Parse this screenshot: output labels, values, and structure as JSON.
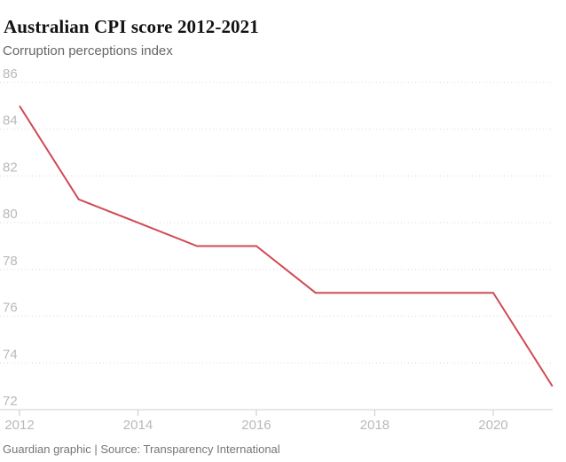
{
  "header": {
    "title": "Australian CPI score 2012-2021",
    "subtitle": "Corruption perceptions index"
  },
  "footer": {
    "credit": "Guardian graphic | Source: Transparency International"
  },
  "colors": {
    "line": "#d04a55",
    "gridline": "#d8d8d8",
    "axis_line": "#d2d2d2",
    "tick_mark": "#c9c9c9",
    "tick_label": "#b9b9b9",
    "title": "#121212",
    "subtitle": "#676767",
    "footer": "#757575"
  },
  "chart_data": {
    "type": "line",
    "title": "Australian CPI score 2012-2021",
    "subtitle": "Corruption perceptions index",
    "x": [
      2012,
      2013,
      2014,
      2015,
      2016,
      2017,
      2018,
      2019,
      2020,
      2021
    ],
    "series": [
      {
        "name": "Australia Corruption Perceptions Index score",
        "values": [
          85,
          81,
          80,
          79,
          79,
          77,
          77,
          77,
          77,
          73
        ]
      }
    ],
    "xlim": [
      2012,
      2021
    ],
    "ylim": [
      72,
      86
    ],
    "yticks": [
      72,
      74,
      76,
      78,
      80,
      82,
      84,
      86
    ],
    "xticks": [
      2012,
      2014,
      2016,
      2018,
      2020
    ],
    "grid": "horizontal-dotted",
    "legend": "none",
    "source": "Transparency International"
  }
}
